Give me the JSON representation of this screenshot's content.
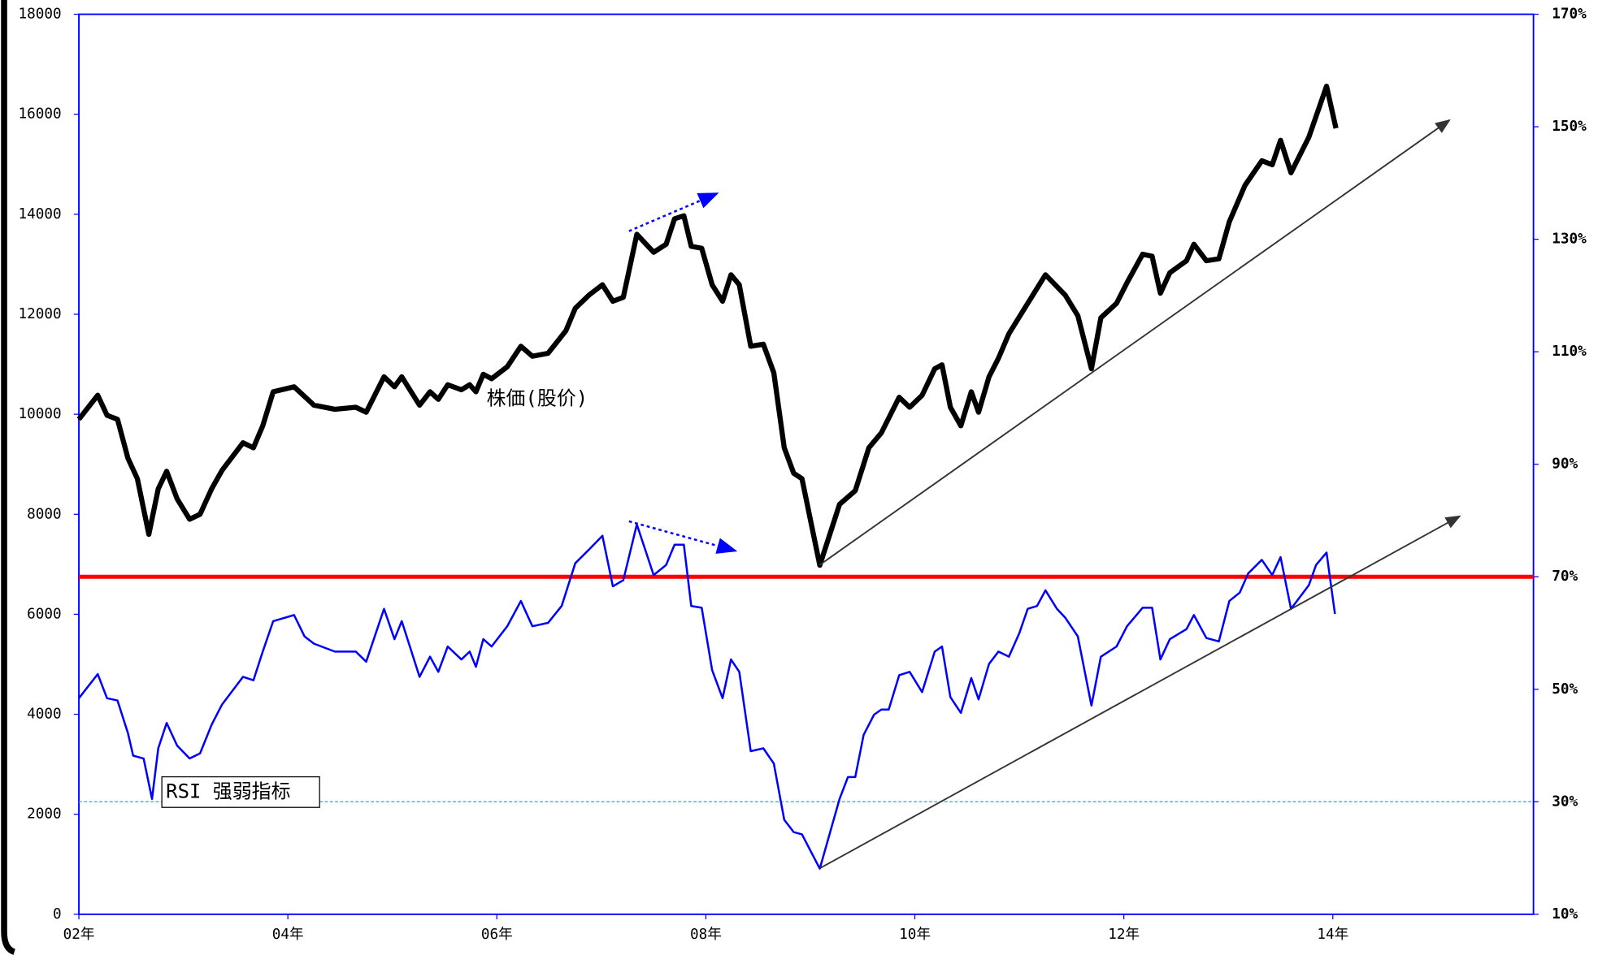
{
  "chart_data": {
    "type": "line",
    "xlim": [
      2,
      15.92
    ],
    "xticks": [
      {
        "value": 2,
        "label": "02年"
      },
      {
        "value": 4,
        "label": "04年"
      },
      {
        "value": 6,
        "label": "06年"
      },
      {
        "value": 8,
        "label": "08年"
      },
      {
        "value": 10,
        "label": "10年"
      },
      {
        "value": 12,
        "label": "12年"
      },
      {
        "value": 14,
        "label": "14年"
      }
    ],
    "ylim": [
      0,
      18000
    ],
    "yticks": [
      0,
      2000,
      4000,
      6000,
      8000,
      10000,
      12000,
      14000,
      16000,
      18000
    ],
    "y2lim": [
      10,
      170
    ],
    "y2ticks": [
      {
        "value": 10,
        "label": "10%"
      },
      {
        "value": 30,
        "label": "30%"
      },
      {
        "value": 50,
        "label": "50%"
      },
      {
        "value": 70,
        "label": "70%"
      },
      {
        "value": 90,
        "label": "90%"
      },
      {
        "value": 110,
        "label": "110%"
      },
      {
        "value": 130,
        "label": "130%"
      },
      {
        "value": 150,
        "label": "150%"
      },
      {
        "value": 170,
        "label": "170%"
      }
    ],
    "grid": false,
    "hlines": [
      {
        "axis": "y2",
        "value": 70,
        "color": "#ff0000",
        "dashed": false
      },
      {
        "axis": "y2",
        "value": 30,
        "color": "#22b8e8",
        "dashed": true
      }
    ],
    "series": [
      {
        "name": "株価(股价)",
        "color": "#000000",
        "axis": "y",
        "x": [
          2.0,
          2.18,
          2.27,
          2.37,
          2.47,
          2.56,
          2.67,
          2.76,
          2.84,
          2.94,
          3.06,
          3.16,
          3.27,
          3.37,
          3.57,
          3.67,
          3.76,
          3.86,
          4.06,
          4.25,
          4.45,
          4.65,
          4.75,
          4.92,
          5.02,
          5.09,
          5.26,
          5.36,
          5.44,
          5.53,
          5.66,
          5.74,
          5.8,
          5.87,
          5.95,
          6.1,
          6.23,
          6.34,
          6.49,
          6.66,
          6.75,
          6.88,
          7.01,
          7.11,
          7.21,
          7.34,
          7.5,
          7.62,
          7.7,
          7.79,
          7.86,
          7.96,
          8.06,
          8.16,
          8.24,
          8.32,
          8.43,
          8.55,
          8.65,
          8.75,
          8.84,
          8.92,
          9.09,
          9.28,
          9.43,
          9.56,
          9.68,
          9.85,
          9.95,
          10.07,
          10.19,
          10.26,
          10.34,
          10.44,
          10.54,
          10.61,
          10.71,
          10.8,
          10.9,
          11.08,
          11.25,
          11.44,
          11.56,
          11.69,
          11.78,
          11.93,
          12.03,
          12.18,
          12.27,
          12.35,
          12.44,
          12.6,
          12.67,
          12.79,
          12.91,
          13.01,
          13.16,
          13.32,
          13.42,
          13.5,
          13.6,
          13.77,
          13.94,
          14.03
        ],
        "values": [
          9900,
          10380,
          9980,
          9900,
          9120,
          8710,
          7600,
          8510,
          8860,
          8310,
          7900,
          8000,
          8510,
          8880,
          9430,
          9330,
          9770,
          10450,
          10550,
          10180,
          10100,
          10140,
          10040,
          10750,
          10550,
          10750,
          10180,
          10450,
          10300,
          10590,
          10490,
          10590,
          10450,
          10800,
          10710,
          10950,
          11360,
          11160,
          11220,
          11670,
          12120,
          12380,
          12590,
          12260,
          12340,
          13600,
          13240,
          13400,
          13910,
          13970,
          13360,
          13320,
          12590,
          12260,
          12790,
          12590,
          11360,
          11400,
          10830,
          9330,
          8820,
          8710,
          6980,
          8200,
          8470,
          9330,
          9630,
          10340,
          10140,
          10380,
          10910,
          10990,
          10140,
          9770,
          10450,
          10040,
          10750,
          11120,
          11610,
          12220,
          12790,
          12380,
          11970,
          10910,
          11930,
          12220,
          12630,
          13200,
          13160,
          12420,
          12830,
          13070,
          13400,
          13070,
          13110,
          13850,
          14580,
          15070,
          14990,
          15480,
          14830,
          15540,
          16560,
          15720
        ]
      },
      {
        "name": "RSI 强弱指标",
        "color": "#0000ff",
        "axis": "y2",
        "x": [
          2.0,
          2.18,
          2.27,
          2.37,
          2.47,
          2.52,
          2.62,
          2.7,
          2.76,
          2.84,
          2.94,
          3.06,
          3.16,
          3.27,
          3.37,
          3.57,
          3.67,
          3.76,
          3.86,
          4.06,
          4.16,
          4.25,
          4.45,
          4.65,
          4.75,
          4.92,
          5.02,
          5.09,
          5.26,
          5.36,
          5.44,
          5.53,
          5.66,
          5.74,
          5.8,
          5.87,
          5.95,
          6.1,
          6.23,
          6.34,
          6.49,
          6.62,
          6.75,
          6.88,
          7.01,
          7.11,
          7.21,
          7.34,
          7.5,
          7.62,
          7.7,
          7.79,
          7.86,
          7.96,
          8.06,
          8.16,
          8.24,
          8.32,
          8.43,
          8.55,
          8.65,
          8.75,
          8.84,
          8.92,
          9.09,
          9.28,
          9.36,
          9.43,
          9.51,
          9.61,
          9.68,
          9.75,
          9.85,
          9.95,
          10.07,
          10.19,
          10.26,
          10.34,
          10.44,
          10.54,
          10.61,
          10.71,
          10.8,
          10.9,
          11.0,
          11.08,
          11.17,
          11.25,
          11.36,
          11.44,
          11.56,
          11.69,
          11.78,
          11.93,
          12.03,
          12.18,
          12.27,
          12.35,
          12.44,
          12.6,
          12.67,
          12.79,
          12.91,
          13.01,
          13.11,
          13.19,
          13.32,
          13.42,
          13.5,
          13.6,
          13.77,
          13.84,
          13.94,
          14.02
        ],
        "values": [
          48.4,
          52.7,
          48.4,
          48.0,
          42.2,
          38.2,
          37.7,
          30.5,
          39.5,
          44.0,
          40.0,
          37.7,
          38.6,
          43.7,
          47.3,
          52.2,
          51.6,
          56.7,
          62.1,
          63.2,
          59.4,
          58.1,
          56.7,
          56.7,
          54.9,
          64.3,
          58.9,
          62.1,
          52.2,
          55.8,
          53.1,
          57.6,
          55.3,
          56.7,
          54.0,
          58.9,
          57.6,
          61.2,
          65.7,
          61.2,
          61.8,
          64.8,
          72.4,
          74.8,
          77.3,
          68.3,
          69.4,
          79.3,
          70.3,
          72.1,
          75.7,
          75.7,
          64.8,
          64.5,
          53.4,
          48.4,
          55.3,
          53.1,
          39.0,
          39.5,
          36.8,
          26.8,
          24.6,
          24.2,
          18.1,
          30.5,
          34.4,
          34.4,
          41.9,
          45.5,
          46.4,
          46.4,
          52.5,
          53.1,
          49.5,
          56.7,
          57.6,
          48.6,
          45.8,
          52.0,
          48.2,
          54.5,
          56.7,
          55.8,
          60.0,
          64.3,
          64.8,
          67.6,
          64.3,
          62.7,
          59.4,
          47.1,
          55.8,
          57.6,
          61.2,
          64.5,
          64.5,
          55.3,
          58.9,
          60.7,
          63.2,
          59.1,
          58.5,
          65.7,
          67.2,
          70.6,
          73.0,
          70.3,
          73.5,
          64.3,
          68.5,
          72.1,
          74.3,
          63.4
        ]
      }
    ]
  }
}
